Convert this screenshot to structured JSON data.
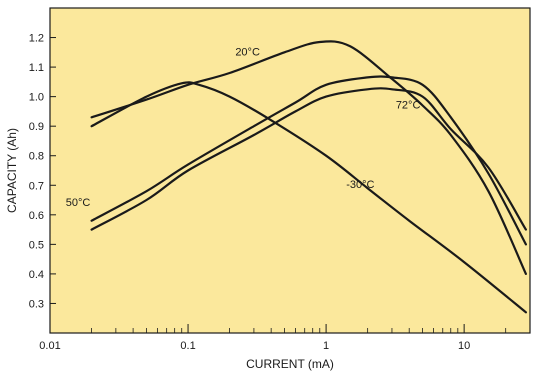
{
  "chart_data": {
    "type": "line",
    "xlabel": "CURRENT (mA)",
    "ylabel": "CAPACITY (Ah)",
    "x_scale": "log",
    "xlim": [
      0.01,
      30
    ],
    "ylim": [
      0.2,
      1.3
    ],
    "x_ticks": [
      {
        "value": 0.01,
        "label": "0.01"
      },
      {
        "value": 0.1,
        "label": "0.1"
      },
      {
        "value": 1,
        "label": "1"
      },
      {
        "value": 10,
        "label": "10"
      }
    ],
    "y_ticks": [
      {
        "value": 0.3,
        "label": "0.3"
      },
      {
        "value": 0.4,
        "label": "0.4"
      },
      {
        "value": 0.5,
        "label": "0.5"
      },
      {
        "value": 0.6,
        "label": "0.6"
      },
      {
        "value": 0.7,
        "label": "0.7"
      },
      {
        "value": 0.8,
        "label": "0.8"
      },
      {
        "value": 0.9,
        "label": "0.9"
      },
      {
        "value": 1.0,
        "label": "1.0"
      },
      {
        "value": 1.1,
        "label": "1.1"
      },
      {
        "value": 1.2,
        "label": "1.2"
      }
    ],
    "grid": false,
    "series": [
      {
        "name": "20°C",
        "points": [
          [
            0.02,
            0.93
          ],
          [
            0.05,
            0.99
          ],
          [
            0.1,
            1.04
          ],
          [
            0.2,
            1.08
          ],
          [
            0.5,
            1.15
          ],
          [
            0.9,
            1.185
          ],
          [
            1.5,
            1.17
          ],
          [
            3,
            1.06
          ],
          [
            5,
            0.97
          ],
          [
            8,
            0.87
          ],
          [
            15,
            0.68
          ],
          [
            28,
            0.4
          ]
        ]
      },
      {
        "name": "-30°C",
        "points": [
          [
            0.02,
            0.9
          ],
          [
            0.05,
            1.0
          ],
          [
            0.09,
            1.045
          ],
          [
            0.12,
            1.04
          ],
          [
            0.2,
            1.0
          ],
          [
            0.4,
            0.92
          ],
          [
            1,
            0.8
          ],
          [
            2,
            0.69
          ],
          [
            4,
            0.58
          ],
          [
            10,
            0.44
          ],
          [
            28,
            0.27
          ]
        ]
      },
      {
        "name": "50°C",
        "points": [
          [
            0.02,
            0.58
          ],
          [
            0.05,
            0.68
          ],
          [
            0.1,
            0.77
          ],
          [
            0.3,
            0.9
          ],
          [
            0.6,
            0.98
          ],
          [
            1,
            1.04
          ],
          [
            2,
            1.065
          ],
          [
            3,
            1.065
          ],
          [
            5,
            1.04
          ],
          [
            8,
            0.93
          ],
          [
            15,
            0.74
          ],
          [
            28,
            0.5
          ]
        ]
      },
      {
        "name": "72°C",
        "points": [
          [
            0.02,
            0.55
          ],
          [
            0.05,
            0.65
          ],
          [
            0.1,
            0.75
          ],
          [
            0.3,
            0.87
          ],
          [
            0.6,
            0.95
          ],
          [
            1,
            1.0
          ],
          [
            2,
            1.025
          ],
          [
            3,
            1.025
          ],
          [
            5,
            1.0
          ],
          [
            8,
            0.89
          ],
          [
            15,
            0.76
          ],
          [
            28,
            0.55
          ]
        ]
      }
    ],
    "series_labels": [
      {
        "text": "20°C",
        "x": 0.22,
        "y": 1.14
      },
      {
        "text": "72°C",
        "x": 3.2,
        "y": 0.96
      },
      {
        "text": "-30°C",
        "x": 1.4,
        "y": 0.69
      },
      {
        "text": "50°C",
        "x": 0.013,
        "y": 0.63
      }
    ],
    "plot_background": "#fbe89c",
    "line_color": "#1a1a1a"
  }
}
